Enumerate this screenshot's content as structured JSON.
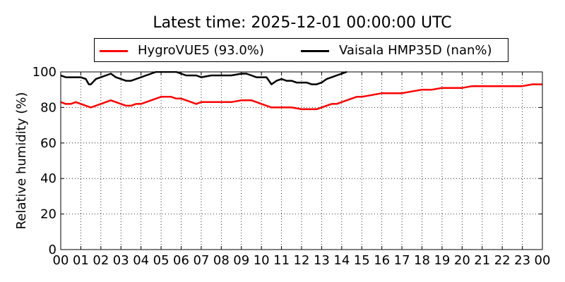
{
  "chart_data": {
    "type": "line",
    "title": "Latest time: 2025-12-01 00:00:00 UTC",
    "ylabel": "Relative humidity (%)",
    "xlabel": "",
    "ylim": [
      0,
      100
    ],
    "xlim": [
      0,
      24
    ],
    "grid": true,
    "legend_position": "top",
    "y_ticks": [
      "0",
      "20",
      "40",
      "60",
      "80",
      "100"
    ],
    "x_ticks": [
      "00",
      "01",
      "02",
      "03",
      "04",
      "05",
      "06",
      "07",
      "08",
      "09",
      "10",
      "11",
      "12",
      "13",
      "14",
      "15",
      "16",
      "17",
      "18",
      "19",
      "20",
      "21",
      "22",
      "23",
      "00"
    ],
    "series": [
      {
        "name": "HygroVUE5 (93.0%)",
        "color": "#ff0000",
        "x": [
          0,
          0.25,
          0.5,
          0.75,
          1.0,
          1.25,
          1.5,
          1.75,
          2.0,
          2.25,
          2.5,
          2.75,
          3.0,
          3.25,
          3.5,
          3.75,
          4.0,
          4.25,
          4.5,
          4.75,
          5.0,
          5.25,
          5.5,
          5.75,
          6.0,
          6.25,
          6.5,
          6.75,
          7.0,
          7.5,
          8.0,
          8.5,
          9.0,
          9.5,
          9.75,
          10.0,
          10.25,
          10.5,
          10.75,
          11.0,
          11.5,
          12.0,
          12.5,
          12.75,
          13.0,
          13.25,
          13.5,
          13.75,
          14.0,
          14.25,
          14.5,
          14.75,
          15.0,
          15.5,
          16.0,
          16.5,
          17.0,
          17.5,
          18.0,
          18.5,
          19.0,
          19.5,
          20.0,
          20.5,
          21.0,
          21.5,
          22.0,
          22.5,
          23.0,
          23.5,
          24.0
        ],
        "y": [
          83,
          82,
          82,
          83,
          82,
          81,
          80,
          81,
          82,
          83,
          84,
          83,
          82,
          81,
          81,
          82,
          82,
          83,
          84,
          85,
          86,
          86,
          86,
          85,
          85,
          84,
          83,
          82,
          83,
          83,
          83,
          83,
          84,
          84,
          83,
          82,
          81,
          80,
          80,
          80,
          80,
          79,
          79,
          79,
          80,
          81,
          82,
          82,
          83,
          84,
          85,
          86,
          86,
          87,
          88,
          88,
          88,
          89,
          90,
          90,
          91,
          91,
          91,
          92,
          92,
          92,
          92,
          92,
          92,
          93,
          93
        ]
      },
      {
        "name": "Vaisala HMP35D (nan%)",
        "color": "#000000",
        "x": [
          0,
          0.25,
          0.5,
          0.75,
          1.0,
          1.25,
          1.4,
          1.5,
          1.75,
          2.0,
          2.25,
          2.5,
          2.75,
          3.0,
          3.25,
          3.5,
          3.75,
          4.0,
          4.25,
          4.5,
          4.75,
          5.0,
          5.25,
          5.5,
          5.75,
          6.0,
          6.25,
          6.5,
          6.75,
          7.0,
          7.5,
          8.0,
          8.5,
          9.0,
          9.25,
          9.5,
          9.75,
          10.0,
          10.25,
          10.5,
          10.75,
          11.0,
          11.25,
          11.5,
          11.75,
          12.0,
          12.25,
          12.5,
          12.75,
          13.0,
          13.25,
          13.5,
          13.75,
          14.0,
          14.25
        ],
        "y": [
          98,
          97,
          97,
          97,
          97,
          96,
          93,
          93,
          96,
          97,
          98,
          99,
          97,
          96,
          95,
          95,
          96,
          97,
          98,
          99,
          100,
          100,
          100,
          100,
          100,
          99,
          98,
          98,
          98,
          97,
          98,
          98,
          98,
          99,
          99,
          98,
          97,
          97,
          97,
          93,
          95,
          96,
          95,
          95,
          94,
          94,
          94,
          93,
          93,
          94,
          96,
          97,
          98,
          99,
          100
        ]
      }
    ]
  }
}
